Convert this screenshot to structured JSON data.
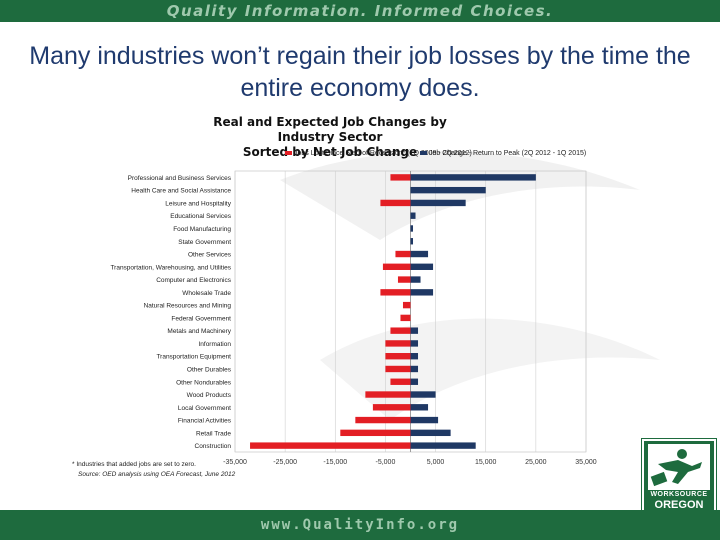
{
  "header": {
    "tagline": "Quality Information. Informed Choices."
  },
  "footer": {
    "url": "www.QualityInfo.org"
  },
  "slide": {
    "title": "Many industries won’t regain their job losses by the time the entire economy does."
  },
  "logo": {
    "line1": "WORKSOURCE",
    "line2": "OREGON"
  },
  "colors": {
    "brand_green": "#1e6b3e",
    "title_blue": "#1f3a6e",
    "loss_red": "#e31e24",
    "gain_navy": "#1f3864"
  },
  "chart_data": {
    "type": "bar",
    "orientation": "horizontal",
    "title": "Real and Expected Job Changes by Industry Sector",
    "subtitle": "Sorted by Net Job Change",
    "categories": [
      "Professional and Business Services",
      "Health Care and Social Assistance",
      "Leisure and Hospitality",
      "Educational Services",
      "Food Manufacturing",
      "State Government",
      "Other Services",
      "Transportation, Warehousing, and Utilities",
      "Computer and Electronics",
      "Wholesale Trade",
      "Natural Resources and Mining",
      "Federal Government",
      "Metals and Machinery",
      "Information",
      "Transportation Equipment",
      "Other Durables",
      "Other Nondurables",
      "Wood Products",
      "Local Government",
      "Financial Activities",
      "Retail Trade",
      "Construction"
    ],
    "series": [
      {
        "name": "Jobs Lost Since Start of Recession* (1Q 2008 - 2Q 2012)",
        "color": "#e31e24",
        "values": [
          -4000,
          0,
          -6000,
          0,
          0,
          0,
          -3000,
          -5500,
          -2500,
          -6000,
          -1500,
          -2000,
          -4000,
          -5000,
          -5000,
          -5000,
          -4000,
          -9000,
          -7500,
          -11000,
          -14000,
          -32000
        ]
      },
      {
        "name": "Job Change - Return to Peak (2Q 2012 - 1Q 2015)",
        "color": "#1f3864",
        "values": [
          25000,
          15000,
          11000,
          1000,
          500,
          500,
          3500,
          4500,
          2000,
          4500,
          0,
          0,
          1500,
          1500,
          1500,
          1500,
          1500,
          5000,
          3500,
          5500,
          8000,
          13000
        ]
      }
    ],
    "xlim": [
      -35000,
      35000
    ],
    "xticks": [
      "-35,000",
      "-25,000",
      "-15,000",
      "-5,000",
      "5,000",
      "15,000",
      "25,000",
      "35,000"
    ],
    "xtick_values": [
      -35000,
      -25000,
      -15000,
      -5000,
      5000,
      15000,
      25000,
      35000
    ],
    "grid": true,
    "legend_position": "top",
    "footnotes": [
      "* Industries that added jobs are set to zero.",
      "Source: OED analysis using OEA Forecast, June 2012"
    ]
  }
}
